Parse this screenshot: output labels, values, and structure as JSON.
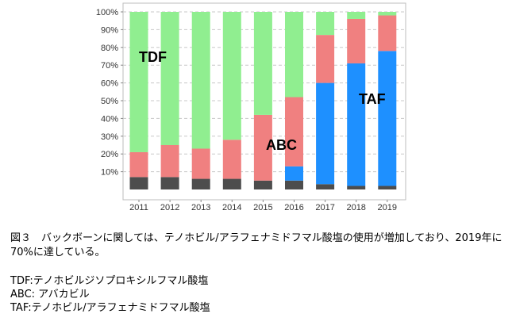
{
  "chart_data": {
    "type": "bar",
    "stacked": true,
    "categories": [
      "2011",
      "2012",
      "2013",
      "2014",
      "2015",
      "2016",
      "2017",
      "2018",
      "2019"
    ],
    "series": [
      {
        "name": "other_dark",
        "color": "#4d4d4d",
        "values": [
          7,
          7,
          6,
          6,
          5,
          5,
          3,
          2,
          2
        ]
      },
      {
        "name": "TAF",
        "color": "#1e90ff",
        "values": [
          0,
          0,
          0,
          0,
          0,
          8,
          57,
          69,
          76
        ]
      },
      {
        "name": "ABC",
        "color": "#f08080",
        "values": [
          14,
          18,
          17,
          22,
          37,
          39,
          27,
          25,
          20
        ]
      },
      {
        "name": "TDF",
        "color": "#90ee90",
        "values": [
          79,
          75,
          77,
          72,
          58,
          48,
          13,
          4,
          2
        ]
      }
    ],
    "yticks": [
      "10%",
      "20%",
      "30%",
      "40%",
      "50%",
      "60%",
      "70%",
      "80%",
      "90%",
      "100%"
    ],
    "ylim": [
      0,
      100
    ],
    "grid": true,
    "annotations": [
      "TDF",
      "ABC",
      "TAF"
    ]
  },
  "caption": "図３　バックボーンに関しては、テノホビル/アラフェナミドフマル酸塩の使用が増加しており、2019年に70%に達している。",
  "notes": [
    "TDF:テノホビルジソプロキシルフマル酸塩",
    "ABC: アバカビル",
    "TAF:テノホビル/アラフェナミドフマル酸塩"
  ]
}
